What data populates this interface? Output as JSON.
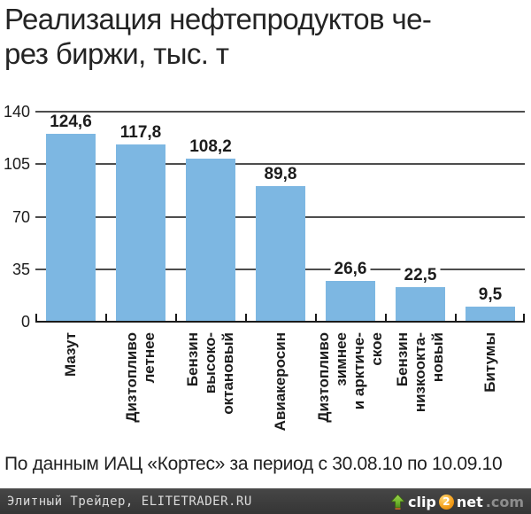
{
  "title": {
    "line1": "Реализация нефтепродуктов че-",
    "line2": "рез биржи, тыс. т"
  },
  "chart_data": {
    "type": "bar",
    "title": "Реализация нефтепродуктов через биржи, тыс. т",
    "categories": [
      "Мазут",
      "Дизтопливо летнее",
      "Бензин высокооктановый",
      "Авиакеросин",
      "Дизтопливо зимнее и арктическое",
      "Бензин низкооктановый",
      "Битумы"
    ],
    "category_lines": [
      [
        "Мазут"
      ],
      [
        "Дизтопливо",
        "летнее"
      ],
      [
        "Бензин",
        "высоко-",
        "октановый"
      ],
      [
        "Авиакеросин"
      ],
      [
        "Дизтопливо",
        "зимнее",
        "и арктиче-",
        "ское"
      ],
      [
        "Бензин",
        "низкоокта-",
        "новый"
      ],
      [
        "Битумы"
      ]
    ],
    "values": [
      124.6,
      117.8,
      108.2,
      89.8,
      26.6,
      22.5,
      9.5
    ],
    "value_labels": [
      "124,6",
      "117,8",
      "108,2",
      "89,8",
      "26,6",
      "22,5",
      "9,5"
    ],
    "ylim": [
      0,
      140
    ],
    "yticks": [
      0,
      35,
      70,
      105,
      140
    ],
    "xlabel": "",
    "ylabel": "",
    "grid": true,
    "legend_position": "none",
    "bar_color": "#7db7e2",
    "gridline_color": "#4d4d4d",
    "axis_color": "#1a1a1a"
  },
  "source_note": "По данным ИАЦ «Кортес» за период с 30.08.10 по 10.09.10",
  "footer": {
    "credit": "Элитный Трейдер, ELITETRADER.RU",
    "logo": {
      "clip": "clip",
      "two": "2",
      "net": "net",
      "dotcom": ".com"
    },
    "bar_color": "#3c3c3c",
    "arrow_color": "#6fb52c",
    "circle_color": "#f5a21f"
  }
}
